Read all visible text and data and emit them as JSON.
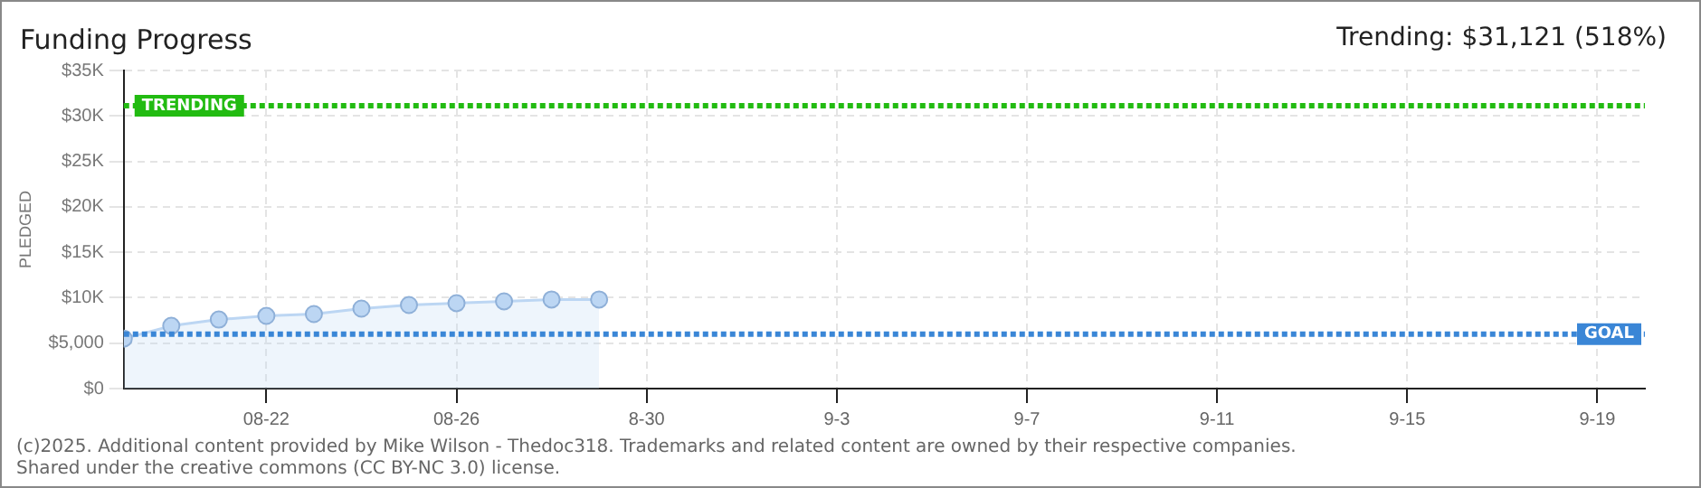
{
  "chart_data": {
    "type": "area",
    "title": "Funding Progress",
    "subtitle": "Trending: $31,121 (518%)",
    "ylabel": "PLEDGED",
    "x": [
      "--08-19",
      "--08-20",
      "--08-21",
      "--08-22",
      "--08-23",
      "--08-24",
      "--08-25",
      "--08-26",
      "--08-27",
      "--08-28",
      "--08-29"
    ],
    "series": [
      {
        "color": "#bcd6f3",
        "values": [
          5500,
          6900,
          7600,
          8000,
          8200,
          8800,
          9200,
          9400,
          9600,
          9800,
          9800
        ]
      }
    ],
    "xlim": [
      "--08-19",
      "--09-20"
    ],
    "xticks": [
      {
        "value": "--08-22",
        "label": "08-22"
      },
      {
        "value": "--08-26",
        "label": "08-26"
      },
      {
        "value": "--08-30",
        "label": "8-30"
      },
      {
        "value": "--09-03",
        "label": "9-3"
      },
      {
        "value": "--09-07",
        "label": "9-7"
      },
      {
        "value": "--09-11",
        "label": "9-11"
      },
      {
        "value": "--09-15",
        "label": "9-15"
      },
      {
        "value": "--09-19",
        "label": "9-19"
      }
    ],
    "ylim": [
      0,
      35000
    ],
    "yticks": [
      {
        "value": 0,
        "label": "$0"
      },
      {
        "value": 5000,
        "label": "$5,000"
      },
      {
        "value": 10000,
        "label": "$10K"
      },
      {
        "value": 15000,
        "label": "$15K"
      },
      {
        "value": 20000,
        "label": "$20K"
      },
      {
        "value": 25000,
        "label": "$25K"
      },
      {
        "value": 30000,
        "label": "$30K"
      },
      {
        "value": 35000,
        "label": "$35K"
      }
    ],
    "ref_lines": [
      {
        "axis": "y",
        "value": 31121,
        "label": "TRENDING",
        "color": "#22bb11",
        "line_style": "dotted"
      },
      {
        "axis": "y",
        "value": 6000,
        "label": "GOAL",
        "color": "#3a86d6",
        "line_style": "dotted"
      }
    ],
    "grid": true,
    "marker": "circle",
    "legend": false,
    "annotations": [
      "(c)2025. Additional content provided by Mike Wilson - Thedoc318. Trademarks and related content are owned by their respective companies.",
      "Shared under the creative commons (CC BY-NC 3.0) license."
    ]
  }
}
